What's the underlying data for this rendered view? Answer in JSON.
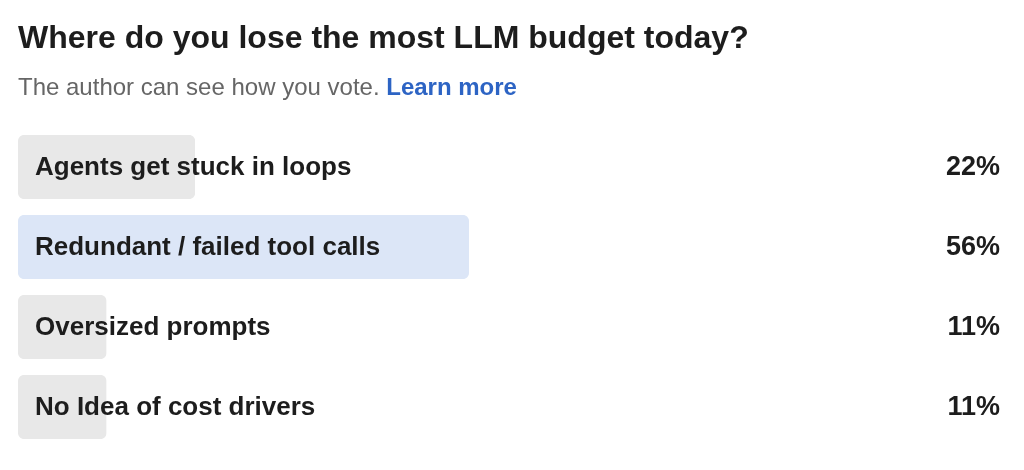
{
  "chart_data": {
    "type": "bar",
    "orientation": "horizontal",
    "title": "Where do you lose the most LLM budget today?",
    "subtitle": "The author can see how you vote.",
    "annotations": [
      "Learn more"
    ],
    "categories": [
      "Agents get stuck in loops",
      "Redundant / failed tool calls",
      "Oversized prompts",
      "No Idea of cost drivers"
    ],
    "values": [
      22,
      56,
      11,
      11
    ],
    "colors": [
      "#e8e8e8",
      "#dce6f7",
      "#e8e8e8",
      "#e8e8e8"
    ],
    "value_labels": [
      "22%",
      "56%",
      "11%",
      "11%"
    ]
  }
}
